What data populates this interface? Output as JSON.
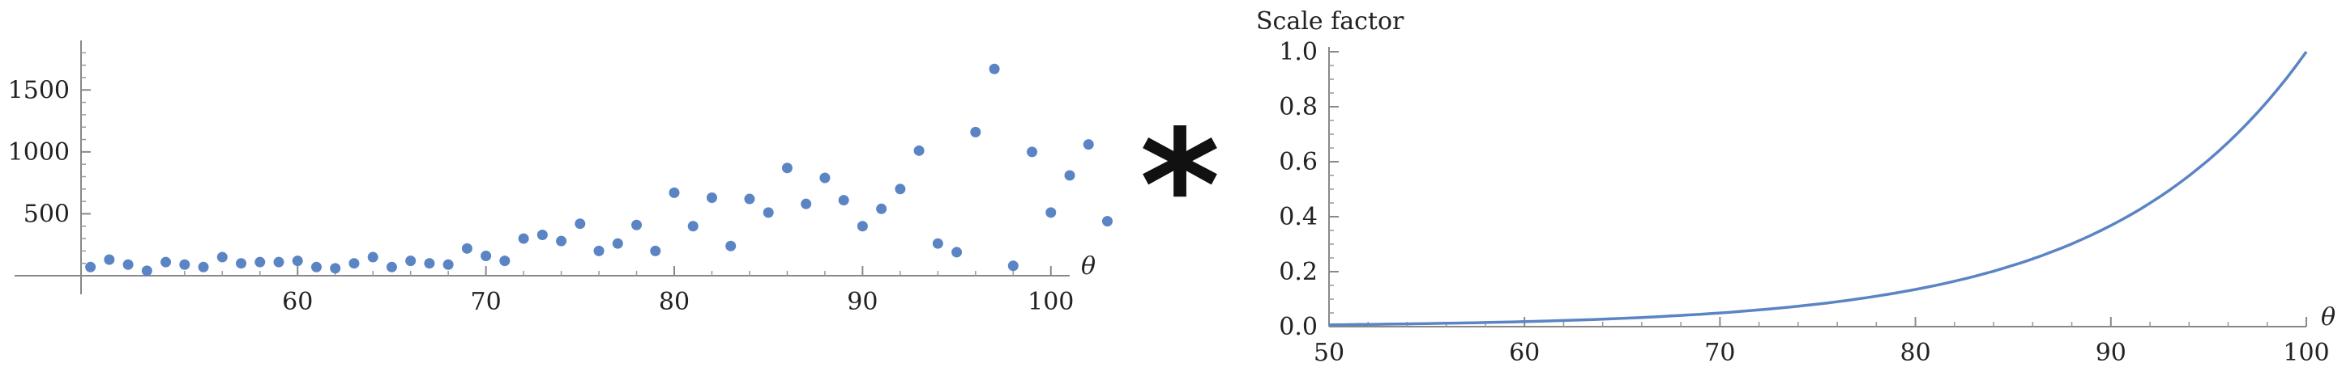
{
  "operator_symbol": "*",
  "chart_data": [
    {
      "type": "scatter",
      "title": "",
      "xlabel": "θ",
      "ylabel": "",
      "xlim": [
        48.5,
        101
      ],
      "ylim": [
        -150,
        1900
      ],
      "x_ticks": [
        60,
        70,
        80,
        90,
        100
      ],
      "y_ticks": [
        500,
        1000,
        1500
      ],
      "grid": false,
      "point_color": "#5b84c4",
      "points": [
        {
          "x": 49,
          "y": 70
        },
        {
          "x": 50,
          "y": 130
        },
        {
          "x": 51,
          "y": 90
        },
        {
          "x": 52,
          "y": 40
        },
        {
          "x": 53,
          "y": 110
        },
        {
          "x": 54,
          "y": 90
        },
        {
          "x": 55,
          "y": 70
        },
        {
          "x": 56,
          "y": 150
        },
        {
          "x": 57,
          "y": 100
        },
        {
          "x": 58,
          "y": 110
        },
        {
          "x": 59,
          "y": 110
        },
        {
          "x": 60,
          "y": 120
        },
        {
          "x": 61,
          "y": 70
        },
        {
          "x": 62,
          "y": 60
        },
        {
          "x": 63,
          "y": 100
        },
        {
          "x": 64,
          "y": 150
        },
        {
          "x": 65,
          "y": 70
        },
        {
          "x": 66,
          "y": 120
        },
        {
          "x": 67,
          "y": 100
        },
        {
          "x": 68,
          "y": 90
        },
        {
          "x": 69,
          "y": 220
        },
        {
          "x": 70,
          "y": 160
        },
        {
          "x": 71,
          "y": 120
        },
        {
          "x": 72,
          "y": 300
        },
        {
          "x": 73,
          "y": 330
        },
        {
          "x": 74,
          "y": 280
        },
        {
          "x": 75,
          "y": 420
        },
        {
          "x": 76,
          "y": 200
        },
        {
          "x": 77,
          "y": 260
        },
        {
          "x": 78,
          "y": 410
        },
        {
          "x": 79,
          "y": 200
        },
        {
          "x": 80,
          "y": 670
        },
        {
          "x": 81,
          "y": 400
        },
        {
          "x": 82,
          "y": 630
        },
        {
          "x": 83,
          "y": 240
        },
        {
          "x": 84,
          "y": 620
        },
        {
          "x": 85,
          "y": 510
        },
        {
          "x": 86,
          "y": 870
        },
        {
          "x": 87,
          "y": 580
        },
        {
          "x": 88,
          "y": 790
        },
        {
          "x": 89,
          "y": 610
        },
        {
          "x": 90,
          "y": 400
        },
        {
          "x": 91,
          "y": 540
        },
        {
          "x": 92,
          "y": 700
        },
        {
          "x": 93,
          "y": 1010
        },
        {
          "x": 94,
          "y": 260
        },
        {
          "x": 95,
          "y": 190
        },
        {
          "x": 96,
          "y": 1160
        },
        {
          "x": 97,
          "y": 1670
        },
        {
          "x": 98,
          "y": 80
        },
        {
          "x": 99,
          "y": 1000
        },
        {
          "x": 100,
          "y": 510
        },
        {
          "x": 101,
          "y": 810
        },
        {
          "x": 102,
          "y": 1060
        },
        {
          "x": 103,
          "y": 440
        }
      ]
    },
    {
      "type": "line",
      "title": "",
      "xlabel": "θ",
      "ylabel": "Scale factor",
      "xlim": [
        50,
        100
      ],
      "ylim": [
        0,
        1.0
      ],
      "x_ticks": [
        50,
        60,
        70,
        80,
        90,
        100
      ],
      "y_ticks": [
        0.0,
        0.2,
        0.4,
        0.6,
        0.8,
        1.0
      ],
      "y_tick_labels": [
        "0.0",
        "0.2",
        "0.4",
        "0.6",
        "0.8",
        "1.0"
      ],
      "grid": false,
      "line_color": "#5b84c4",
      "series": [
        {
          "x": [
            50,
            55,
            60,
            65,
            70,
            75,
            80,
            85,
            90,
            95,
            100
          ],
          "y": [
            0.0067,
            0.0111,
            0.0183,
            0.0302,
            0.0498,
            0.0821,
            0.1353,
            0.2231,
            0.3679,
            0.6065,
            1.0
          ]
        }
      ]
    }
  ]
}
